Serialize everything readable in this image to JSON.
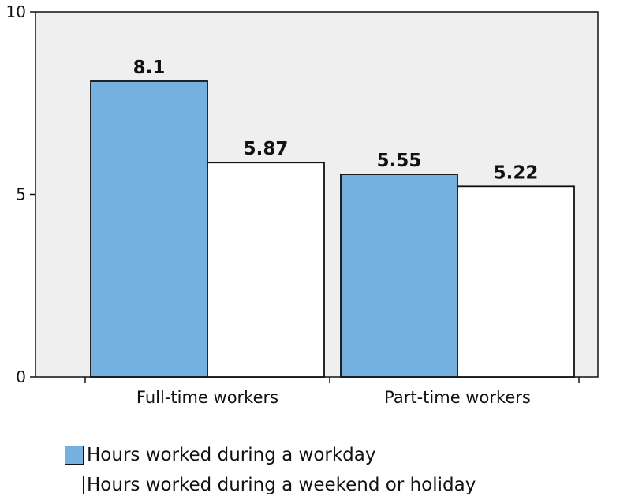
{
  "chart_data": {
    "type": "bar",
    "categories": [
      "Full-time workers",
      "Part-time workers"
    ],
    "series": [
      {
        "name": "Hours worked during a workday",
        "values": [
          8.1,
          5.55
        ],
        "color": "#74b1e0"
      },
      {
        "name": "Hours worked during a weekend or holiday",
        "values": [
          5.87,
          5.22
        ],
        "color": "#ffffff"
      }
    ],
    "value_labels": [
      [
        "8.1",
        "5.55"
      ],
      [
        "5.87",
        "5.22"
      ]
    ],
    "yticks": [
      0,
      5,
      10
    ],
    "ylim": [
      0,
      10
    ],
    "title": "",
    "xlabel": "",
    "ylabel": "",
    "plot_background": "#efefef",
    "grid": false,
    "legend_position": "bottom-left"
  }
}
